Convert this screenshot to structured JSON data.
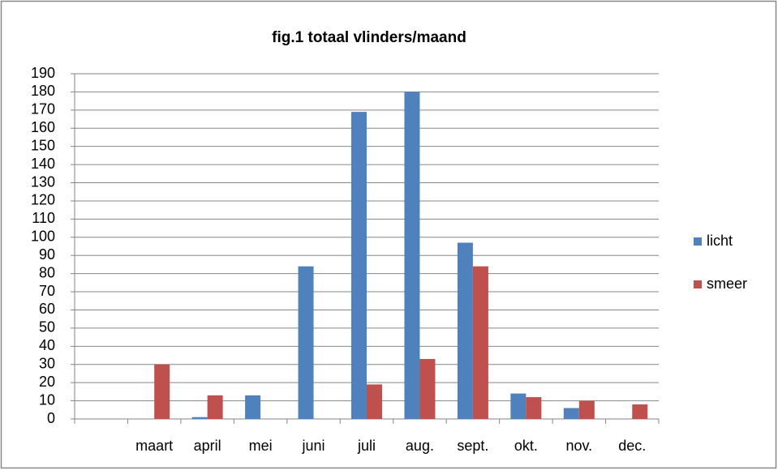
{
  "chart_data": {
    "type": "bar",
    "title": "fig.1 totaal vlinders/maand",
    "categories": [
      null,
      "maart",
      "april",
      "mei",
      "juni",
      "juli",
      "aug.",
      "sept.",
      "okt.",
      "nov.",
      "dec."
    ],
    "series": [
      {
        "name": "licht",
        "color": "#4f81bd",
        "values": [
          0,
          0,
          1,
          13,
          84,
          169,
          180,
          97,
          14,
          6,
          0
        ]
      },
      {
        "name": "smeer",
        "color": "#c0504d",
        "values": [
          0,
          30,
          13,
          0,
          0,
          19,
          33,
          84,
          12,
          10,
          8
        ]
      }
    ],
    "ylim": [
      0,
      190
    ],
    "yticks": [
      0,
      10,
      20,
      30,
      40,
      50,
      60,
      70,
      80,
      90,
      100,
      110,
      120,
      130,
      140,
      150,
      160,
      170,
      180,
      190
    ],
    "grid": true,
    "legend": "right"
  }
}
